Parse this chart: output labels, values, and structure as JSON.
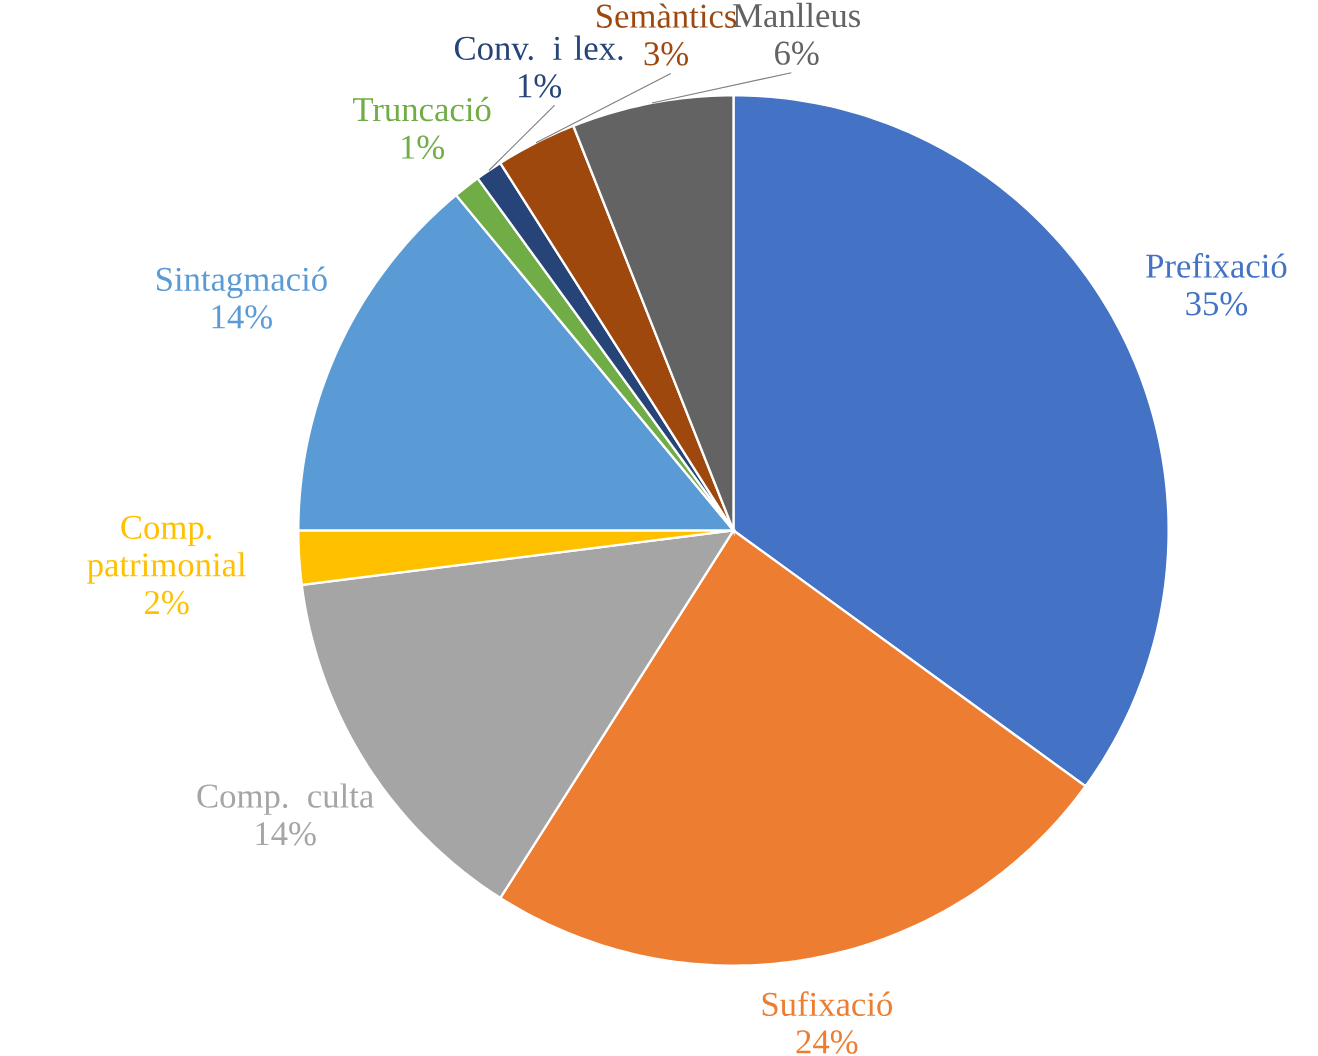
{
  "chart_data": {
    "type": "pie",
    "categories": [
      "Prefixació",
      "Sufixació",
      "Comp. culta",
      "Comp. patrimonial",
      "Sintagmació",
      "Truncació",
      "Conv. i lex.",
      "Semàntics",
      "Manlleus"
    ],
    "values": [
      35,
      24,
      14,
      2,
      14,
      1,
      1,
      3,
      6
    ],
    "value_labels": [
      "35%",
      "24%",
      "14%",
      "2%",
      "14%",
      "1%",
      "1%",
      "3%",
      "6%"
    ],
    "colors": [
      "#4472c4",
      "#ed7d31",
      "#a5a5a5",
      "#ffc000",
      "#5b9bd5",
      "#70ad47",
      "#264478",
      "#9e480e",
      "#636363"
    ],
    "data_labels": true
  }
}
